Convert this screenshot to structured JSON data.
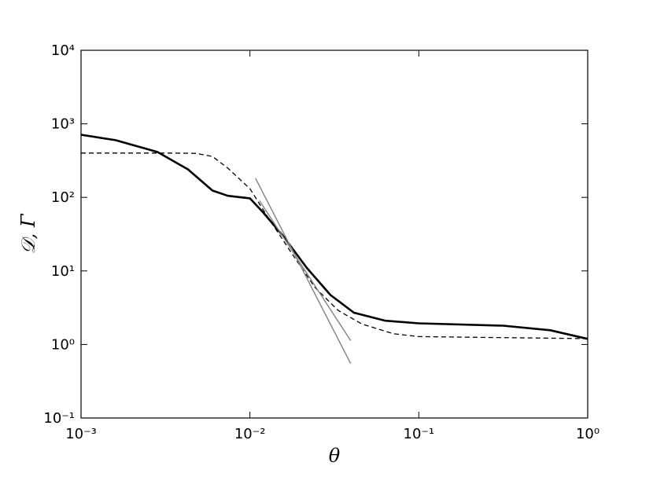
{
  "chart_data": {
    "type": "line",
    "x_label": "θ",
    "y_label": "𝒟, Γ",
    "xscale": "log",
    "yscale": "log",
    "xlim": [
      0.001,
      1
    ],
    "ylim": [
      0.1,
      10000
    ],
    "xticks": [
      {
        "value": 0.001,
        "label": "10⁻³"
      },
      {
        "value": 0.01,
        "label": "10⁻²"
      },
      {
        "value": 0.1,
        "label": "10⁻¹"
      },
      {
        "value": 1,
        "label": "10⁰"
      }
    ],
    "yticks": [
      {
        "value": 0.1,
        "label": "10⁻¹"
      },
      {
        "value": 1,
        "label": "10⁰"
      },
      {
        "value": 10,
        "label": "10¹"
      },
      {
        "value": 100,
        "label": "10²"
      },
      {
        "value": 1000,
        "label": "10³"
      },
      {
        "value": 10000,
        "label": "10⁴"
      }
    ],
    "series": [
      {
        "color": "#000000",
        "dash": "none",
        "width": 2.6,
        "x": [
          0.001,
          0.0016,
          0.00283,
          0.0043,
          0.006,
          0.0074,
          0.01,
          0.012,
          0.0157,
          0.0217,
          0.03,
          0.0413,
          0.0635,
          0.1,
          0.316,
          0.6,
          1
        ],
        "values": [
          710,
          600,
          415,
          240,
          124,
          105,
          97,
          62,
          30,
          11,
          4.7,
          2.7,
          2.1,
          1.94,
          1.8,
          1.56,
          1.19
        ]
      },
      {
        "color": "#000000",
        "dash": "6,4",
        "width": 1.3,
        "x": [
          0.001,
          0.0035,
          0.0048,
          0.006,
          0.0074,
          0.01,
          0.0127,
          0.0175,
          0.0242,
          0.0333,
          0.046,
          0.0705,
          0.1,
          1
        ],
        "values": [
          400,
          400,
          397,
          360,
          250,
          131,
          55,
          18,
          6,
          2.9,
          1.9,
          1.4,
          1.28,
          1.2
        ]
      },
      {
        "color": "#888888",
        "dash": "none",
        "width": 1.5,
        "x": [
          0.0108,
          0.0395
        ],
        "values": [
          182,
          0.55
        ]
      },
      {
        "color": "#888888",
        "dash": "none",
        "width": 1.5,
        "x": [
          0.0114,
          0.0395
        ],
        "values": [
          90,
          1.13
        ]
      }
    ]
  }
}
